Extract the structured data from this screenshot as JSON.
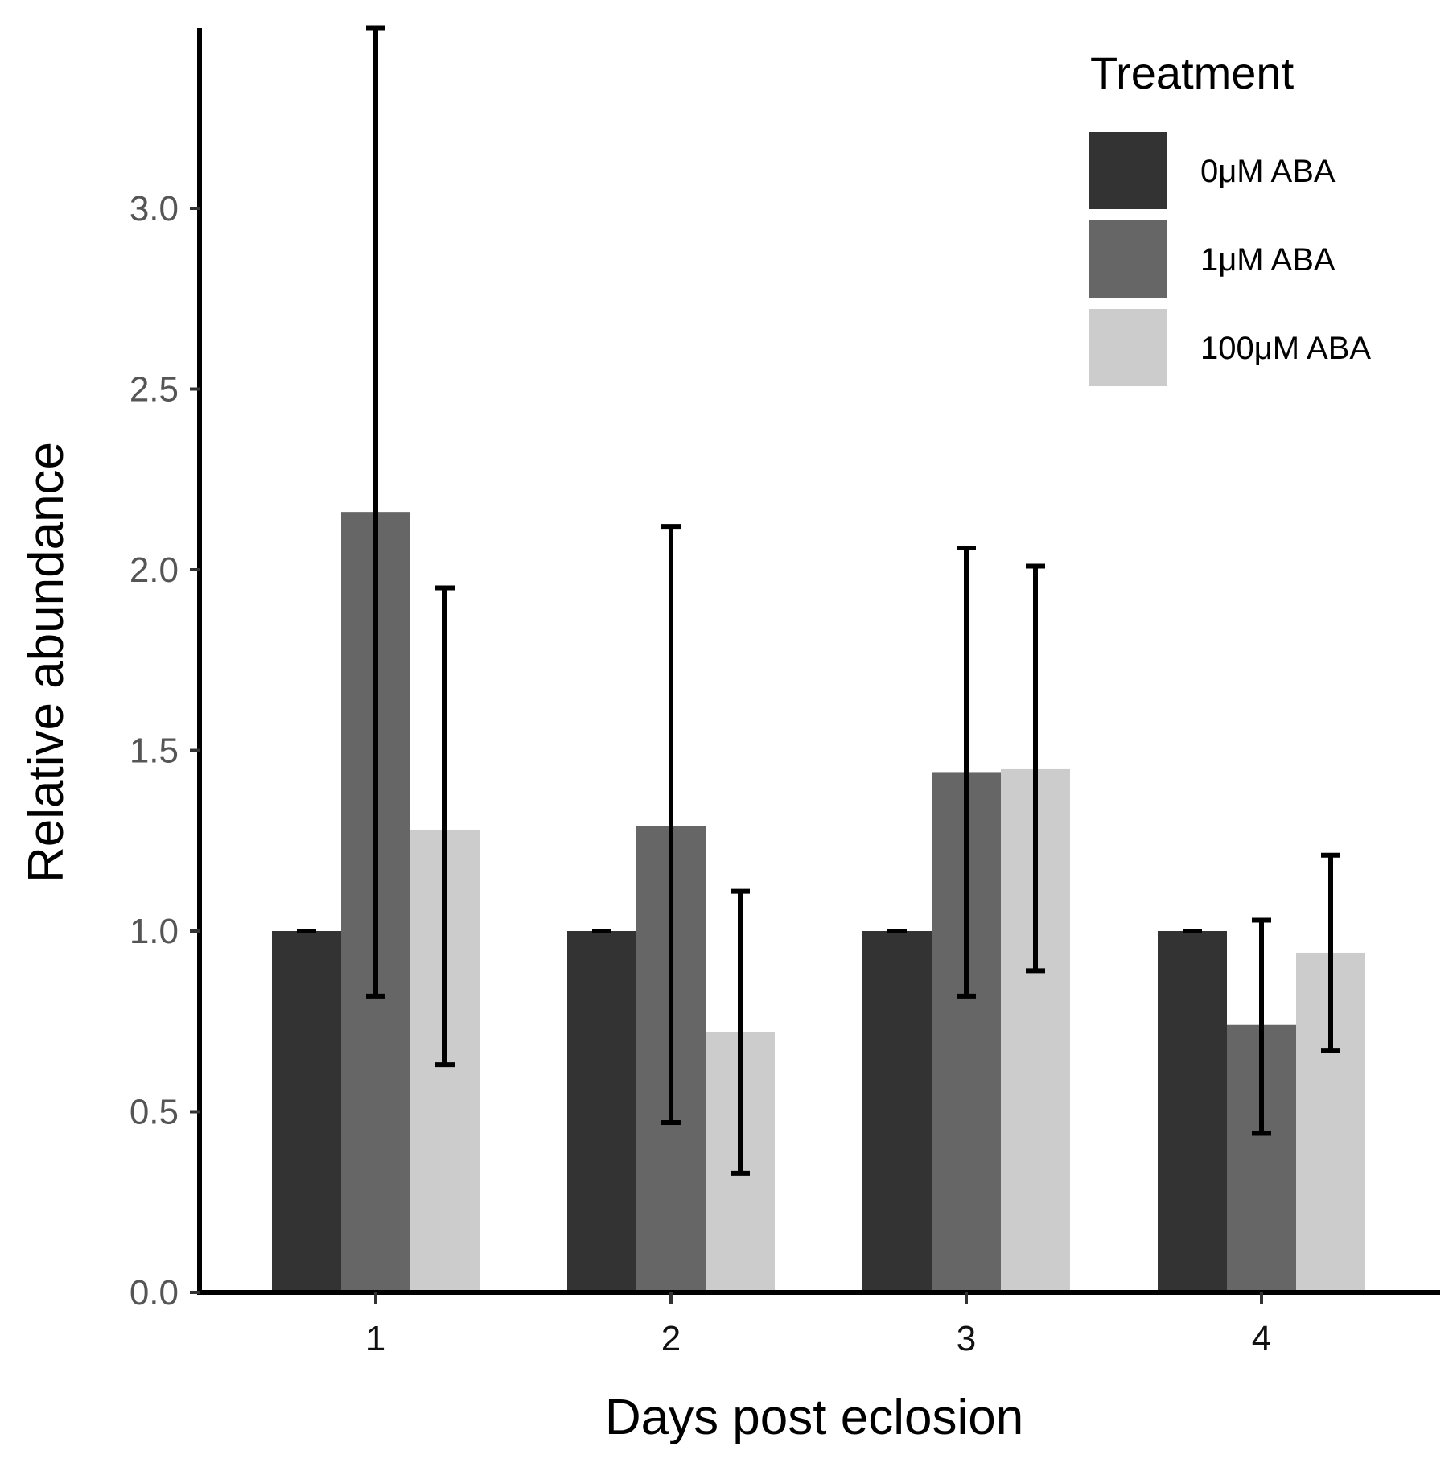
{
  "chart_data": {
    "type": "bar",
    "xlabel": "Days post eclosion",
    "ylabel": "Relative abundance",
    "categories": [
      "1",
      "2",
      "3",
      "4"
    ],
    "yticks": [
      0.0,
      0.5,
      1.0,
      1.5,
      2.0,
      2.5,
      3.0
    ],
    "ytick_labels": [
      "0.0",
      "0.5",
      "1.0",
      "1.5",
      "2.0",
      "2.5",
      "3.0"
    ],
    "ylim": [
      0,
      3.5
    ],
    "grid": false,
    "legend": {
      "title": "Treatment",
      "position": "top-right"
    },
    "series": [
      {
        "name": "0μM ABA",
        "color": "#333333",
        "values": [
          1.0,
          1.0,
          1.0,
          1.0
        ],
        "error_low": [
          1.0,
          1.0,
          1.0,
          1.0
        ],
        "error_high": [
          1.0,
          1.0,
          1.0,
          1.0
        ]
      },
      {
        "name": "1μM ABA",
        "color": "#666666",
        "values": [
          2.16,
          1.29,
          1.44,
          0.74
        ],
        "error_low": [
          0.82,
          0.47,
          0.82,
          0.44
        ],
        "error_high": [
          3.5,
          2.12,
          2.06,
          1.03
        ]
      },
      {
        "name": "100μM ABA",
        "color": "#cccccc",
        "values": [
          1.28,
          0.72,
          1.45,
          0.94
        ],
        "error_low": [
          0.63,
          0.33,
          0.89,
          0.67
        ],
        "error_high": [
          1.95,
          1.11,
          2.01,
          1.21
        ]
      }
    ]
  }
}
